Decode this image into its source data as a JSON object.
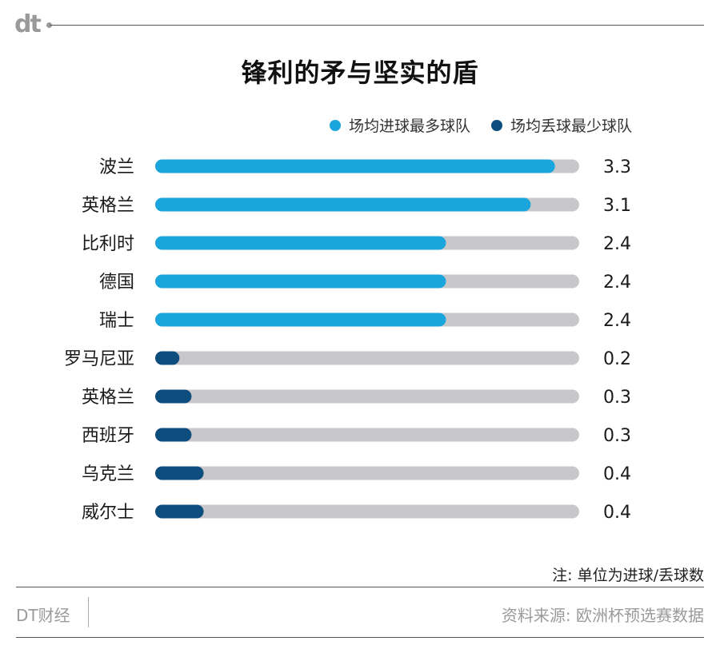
{
  "header": {
    "logo_text": "dt"
  },
  "chart_data": {
    "type": "bar",
    "orientation": "horizontal",
    "title": "锋利的矛与坚实的盾",
    "unit_note": "注: 单位为进球/丢球数",
    "xlim": [
      0,
      3.5
    ],
    "series": [
      {
        "name": "场均进球最多球队",
        "color": "#1aa6dc",
        "categories": [
          "波兰",
          "英格兰",
          "比利时",
          "德国",
          "瑞士"
        ],
        "values": [
          3.3,
          3.1,
          2.4,
          2.4,
          2.4
        ],
        "labels": [
          "3.3",
          "3.1",
          "2.4",
          "2.4",
          "2.4"
        ]
      },
      {
        "name": "场均丢球最少球队",
        "color": "#0d4d7e",
        "categories": [
          "罗马尼亚",
          "英格兰",
          "西班牙",
          "乌克兰",
          "威尔士"
        ],
        "values": [
          0.2,
          0.3,
          0.3,
          0.4,
          0.4
        ],
        "labels": [
          "0.2",
          "0.3",
          "0.3",
          "0.4",
          "0.4"
        ]
      }
    ],
    "track_color": "#c8c8ca"
  },
  "footer": {
    "brand": "DT财经",
    "source": "资料来源: 欧洲杯预选赛数据"
  }
}
